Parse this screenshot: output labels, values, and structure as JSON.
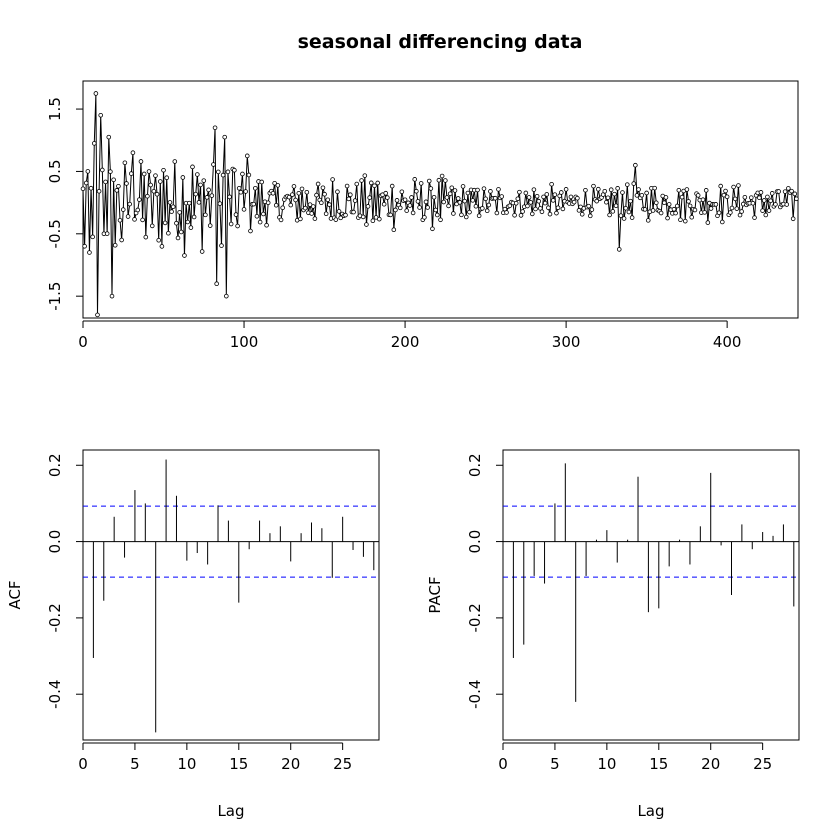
{
  "chart_data": [
    {
      "type": "line",
      "title": "seasonal differencing data",
      "xlabel": "",
      "ylabel": "",
      "markers": "open-circle",
      "xlim": [
        0,
        444
      ],
      "ylim": [
        -1.85,
        1.95
      ],
      "x_ticks": [
        0,
        100,
        200,
        300,
        400
      ],
      "x_tick_labels": [
        "0",
        "100",
        "200",
        "300",
        "400"
      ],
      "y_ticks": [
        -1.5,
        -0.5,
        0.5,
        1.5
      ],
      "y_tick_labels": [
        "-1.5",
        "-0.5",
        "0.5",
        "1.5"
      ],
      "n": 444,
      "key_values": [
        {
          "x": 1,
          "y": -0.7
        },
        {
          "x": 3,
          "y": 0.5
        },
        {
          "x": 4,
          "y": -0.8
        },
        {
          "x": 7,
          "y": 0.95
        },
        {
          "x": 8,
          "y": 1.75
        },
        {
          "x": 9,
          "y": -1.8
        },
        {
          "x": 11,
          "y": 1.4
        },
        {
          "x": 13,
          "y": -0.5
        },
        {
          "x": 16,
          "y": 1.05
        },
        {
          "x": 18,
          "y": -1.5
        },
        {
          "x": 24,
          "y": -0.6
        },
        {
          "x": 31,
          "y": 0.8
        },
        {
          "x": 82,
          "y": 1.2
        },
        {
          "x": 83,
          "y": -1.3
        },
        {
          "x": 88,
          "y": 1.05
        },
        {
          "x": 89,
          "y": -1.5
        },
        {
          "x": 102,
          "y": 0.75
        },
        {
          "x": 333,
          "y": -0.75
        },
        {
          "x": 343,
          "y": 0.6
        }
      ]
    },
    {
      "type": "bar",
      "subtype": "acf",
      "title": "",
      "xlabel": "Lag",
      "ylabel": "ACF",
      "xlim": [
        0,
        28.5
      ],
      "ylim": [
        -0.52,
        0.24
      ],
      "x_ticks": [
        0,
        5,
        10,
        15,
        20,
        25
      ],
      "x_tick_labels": [
        "0",
        "5",
        "10",
        "15",
        "20",
        "25"
      ],
      "y_ticks": [
        -0.4,
        -0.2,
        0.0,
        0.2
      ],
      "y_tick_labels": [
        "-0.4",
        "-0.2",
        "0.0",
        "0.2"
      ],
      "confidence_bound": 0.093,
      "lags": [
        1,
        2,
        3,
        4,
        5,
        6,
        7,
        8,
        9,
        10,
        11,
        12,
        13,
        14,
        15,
        16,
        17,
        18,
        19,
        20,
        21,
        22,
        23,
        24,
        25,
        26,
        27,
        28
      ],
      "values": [
        -0.305,
        -0.155,
        0.065,
        -0.042,
        0.135,
        0.1,
        -0.5,
        0.215,
        0.12,
        -0.05,
        -0.03,
        -0.06,
        0.095,
        0.055,
        -0.16,
        -0.02,
        0.055,
        0.022,
        0.04,
        -0.052,
        0.022,
        0.05,
        0.035,
        -0.095,
        0.065,
        -0.022,
        -0.04,
        -0.075
      ]
    },
    {
      "type": "bar",
      "subtype": "pacf",
      "title": "",
      "xlabel": "Lag",
      "ylabel": "PACF",
      "xlim": [
        0,
        28.5
      ],
      "ylim": [
        -0.52,
        0.24
      ],
      "x_ticks": [
        0,
        5,
        10,
        15,
        20,
        25
      ],
      "x_tick_labels": [
        "0",
        "5",
        "10",
        "15",
        "20",
        "25"
      ],
      "y_ticks": [
        -0.4,
        -0.2,
        0.0,
        0.2
      ],
      "y_tick_labels": [
        "-0.4",
        "-0.2",
        "0.0",
        "0.2"
      ],
      "confidence_bound": 0.093,
      "lags": [
        1,
        2,
        3,
        4,
        5,
        6,
        7,
        8,
        9,
        10,
        11,
        12,
        13,
        14,
        15,
        16,
        17,
        18,
        19,
        20,
        21,
        22,
        23,
        24,
        25,
        26,
        27,
        28
      ],
      "values": [
        -0.305,
        -0.27,
        -0.09,
        -0.11,
        0.1,
        0.205,
        -0.42,
        -0.09,
        0.005,
        0.03,
        -0.055,
        0.005,
        0.17,
        -0.185,
        -0.175,
        -0.065,
        0.005,
        -0.06,
        0.04,
        0.18,
        -0.01,
        -0.14,
        0.045,
        -0.02,
        0.025,
        0.015,
        0.045,
        -0.17
      ]
    }
  ],
  "colors": {
    "bound_line": "#0000ff",
    "series": "#000000",
    "axis": "#000000"
  }
}
